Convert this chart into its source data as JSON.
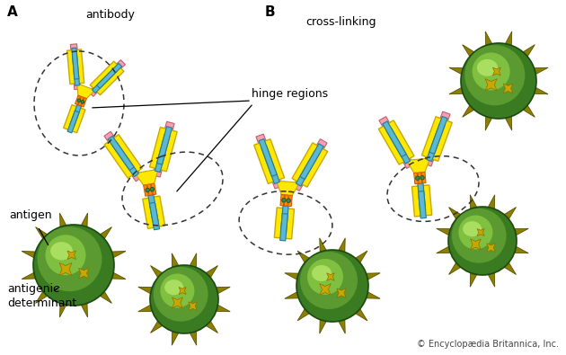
{
  "background_color": "#ffffff",
  "title_A": "A",
  "title_B": "B",
  "label_antibody": "antibody",
  "label_cross_linking": "cross-linking",
  "label_hinge_regions": "hinge regions",
  "label_antigen": "antigen",
  "label_antigenic_determinant": "antigenic\ndeterminant",
  "label_copyright": "© Encyclopædia Britannica, Inc.",
  "color_yellow": "#FFE800",
  "color_blue": "#5BB8D4",
  "color_pink": "#F4A0B0",
  "color_orange": "#FF8C00",
  "color_hinge_green": "#3A8A50",
  "color_outline_blue": "#2A7A90",
  "color_outline_pink": "#C06070",
  "color_outline_yellow": "#C8A800",
  "figsize": [
    6.3,
    3.95
  ],
  "dpi": 100
}
